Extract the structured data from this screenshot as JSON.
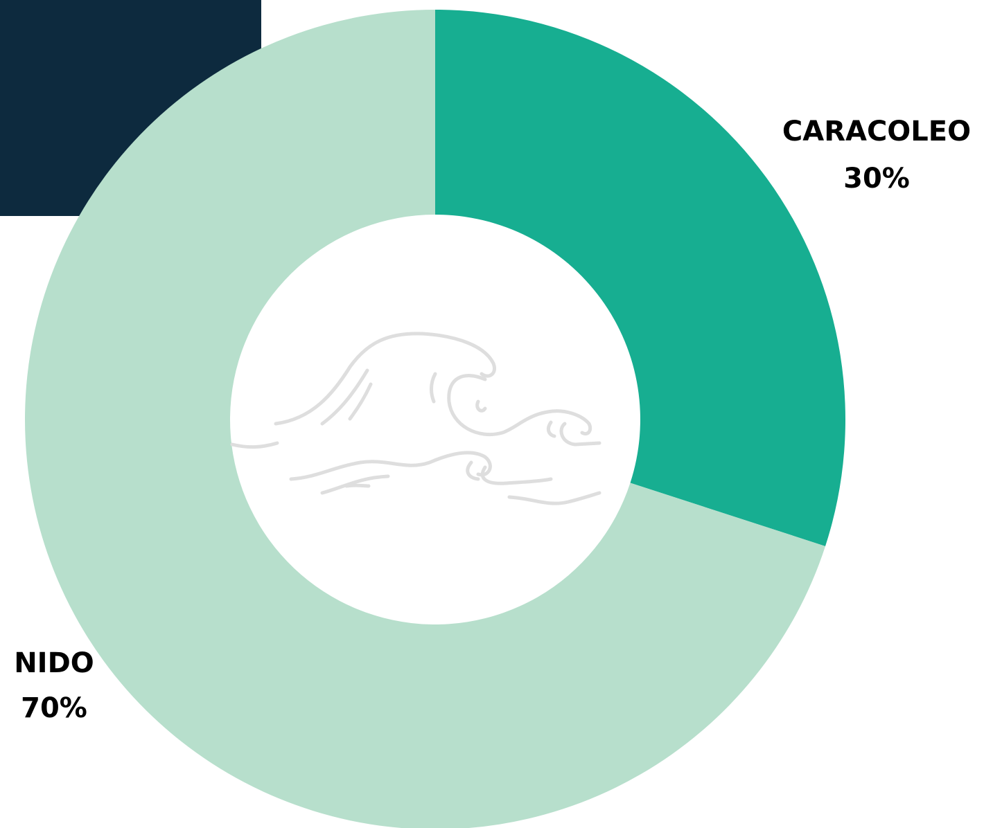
{
  "chart_data": {
    "type": "pie",
    "donut": true,
    "categories": [
      "CARACOLEO",
      "NIDO"
    ],
    "values": [
      30,
      70
    ],
    "value_labels": [
      "30%",
      "70%"
    ],
    "colors": [
      "#17ae91",
      "#b7dfcc"
    ]
  }
}
